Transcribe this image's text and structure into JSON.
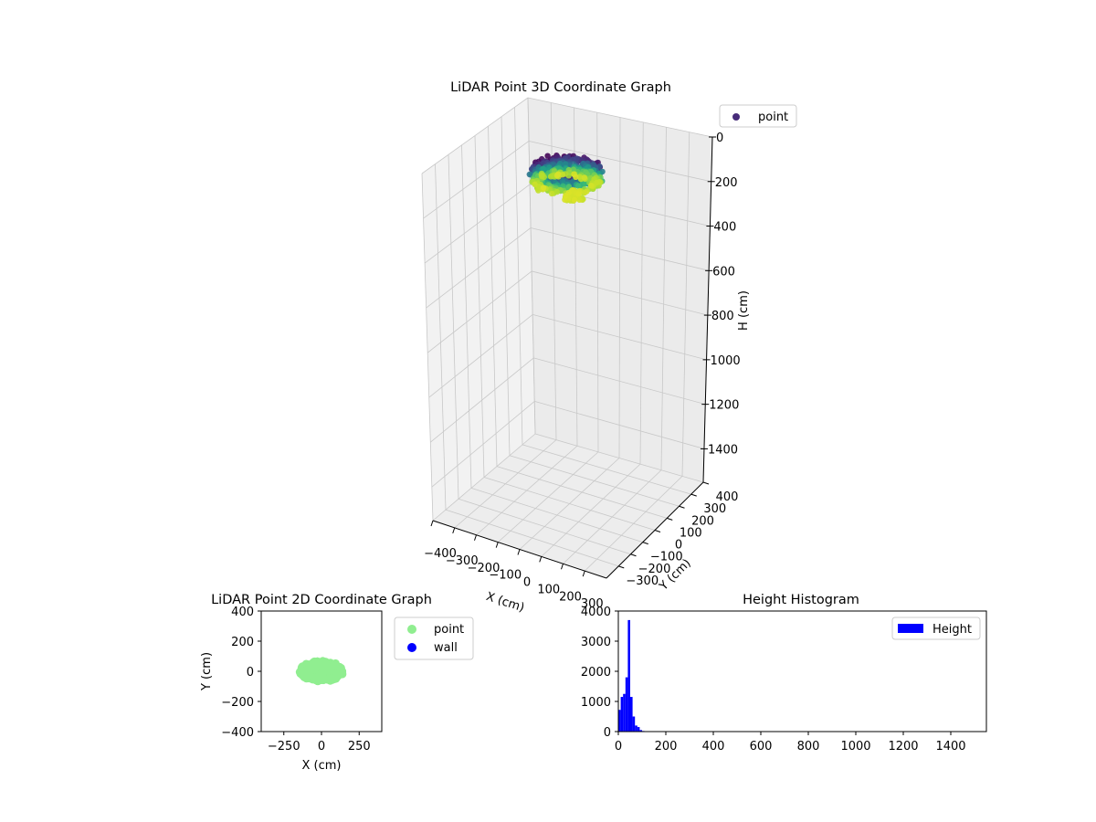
{
  "chart_data": [
    {
      "type": "scatter",
      "projection": "3d",
      "title": "LiDAR Point 3D Coordinate Graph",
      "xlabel": "X (cm)",
      "ylabel": "Y (cm)",
      "zlabel": "H (cm)",
      "xlim": [
        -400,
        400
      ],
      "ylim": [
        -400,
        400
      ],
      "zlim": [
        1550,
        0
      ],
      "x_ticks": [
        "-400",
        "-300",
        "-200",
        "-100",
        "0",
        "100",
        "200",
        "300"
      ],
      "y_ticks": [
        "-300",
        "-200",
        "-100",
        "0",
        "100",
        "200",
        "300",
        "400"
      ],
      "z_ticks": [
        "0",
        "200",
        "400",
        "600",
        "800",
        "1000",
        "1200",
        "1400"
      ],
      "z_inverted": true,
      "grid": true,
      "colormap": "viridis",
      "legend": {
        "entries": [
          "point"
        ],
        "placement": "upper-right outside"
      },
      "series": [
        {
          "name": "point",
          "color": "#440154",
          "description_of_cloud": {
            "x_range": [
              -200,
              200
            ],
            "y_range": [
              -100,
              100
            ],
            "h_range": [
              0,
              160
            ]
          }
        }
      ]
    },
    {
      "type": "scatter",
      "title": "LiDAR Point 2D Coordinate Graph",
      "xlabel": "X (cm)",
      "ylabel": "Y (cm)",
      "xlim": [
        -400,
        400
      ],
      "ylim": [
        -400,
        400
      ],
      "x_ticks": [
        "−250",
        "0",
        "250"
      ],
      "y_ticks": [
        "−400",
        "−200",
        "0",
        "200",
        "400"
      ],
      "grid": false,
      "legend": {
        "entries": [
          "point",
          "wall"
        ],
        "placement": "upper-right outside"
      },
      "series": [
        {
          "name": "point",
          "color": "#90ee90",
          "x_range": [
            -170,
            170
          ],
          "y_range": [
            -90,
            110
          ]
        },
        {
          "name": "wall",
          "color": "#0000ff",
          "points": []
        }
      ]
    },
    {
      "type": "bar",
      "subtype": "histogram",
      "title": "Height Histogram",
      "xlabel": "",
      "ylabel": "",
      "xlim": [
        0,
        1550
      ],
      "ylim": [
        0,
        4000
      ],
      "x_ticks": [
        "0",
        "200",
        "400",
        "600",
        "800",
        "1000",
        "1200",
        "1400"
      ],
      "y_ticks": [
        "0",
        "1000",
        "2000",
        "3000",
        "4000"
      ],
      "grid": false,
      "legend": {
        "entries": [
          "Height"
        ],
        "placement": "upper-right"
      },
      "series": [
        {
          "name": "Height",
          "color": "#0000ff",
          "bin_edges": [
            0,
            10,
            20,
            30,
            40,
            50,
            60,
            70,
            80,
            90,
            100,
            110,
            120,
            130
          ],
          "counts": [
            720,
            1150,
            1250,
            1800,
            3700,
            1150,
            500,
            200,
            150,
            50,
            20,
            10,
            0
          ]
        }
      ]
    }
  ]
}
